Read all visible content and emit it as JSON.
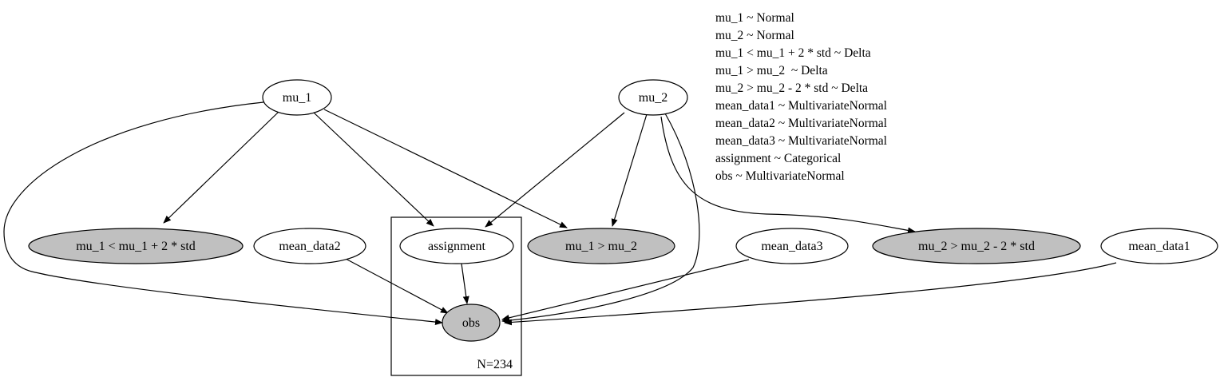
{
  "diagram": {
    "nodes": {
      "mu_1": {
        "label": "mu_1",
        "observed": false
      },
      "mu_2": {
        "label": "mu_2",
        "observed": false
      },
      "mu1_lt": {
        "label": "mu_1 < mu_1 + 2 * std",
        "observed": true
      },
      "mean_data2": {
        "label": "mean_data2",
        "observed": false
      },
      "assignment": {
        "label": "assignment",
        "observed": false
      },
      "mu1_gt_mu2": {
        "label": "mu_1 > mu_2",
        "observed": true
      },
      "mean_data3": {
        "label": "mean_data3",
        "observed": false
      },
      "mu2_gt": {
        "label": "mu_2 > mu_2 - 2 * std",
        "observed": true
      },
      "mean_data1": {
        "label": "mean_data1",
        "observed": false
      },
      "obs": {
        "label": "obs",
        "observed": true
      }
    },
    "plate": {
      "label": "N=234"
    },
    "edges": [
      {
        "from": "mu_1",
        "to": "mu1_lt"
      },
      {
        "from": "mu_1",
        "to": "assignment"
      },
      {
        "from": "mu_1",
        "to": "mu1_gt_mu2"
      },
      {
        "from": "mu_1",
        "to": "obs"
      },
      {
        "from": "mu_2",
        "to": "assignment"
      },
      {
        "from": "mu_2",
        "to": "mu1_gt_mu2"
      },
      {
        "from": "mu_2",
        "to": "mu2_gt"
      },
      {
        "from": "mu_2",
        "to": "obs"
      },
      {
        "from": "mean_data2",
        "to": "obs"
      },
      {
        "from": "assignment",
        "to": "obs"
      },
      {
        "from": "mean_data3",
        "to": "obs"
      },
      {
        "from": "mean_data1",
        "to": "obs"
      }
    ],
    "legend": [
      "mu_1 ~ Normal",
      "mu_2 ~ Normal",
      "mu_1 < mu_1 + 2 * std ~ Delta",
      "mu_1 > mu_2  ~ Delta",
      "mu_2 > mu_2 - 2 * std ~ Delta",
      "mean_data1 ~ MultivariateNormal",
      "mean_data2 ~ MultivariateNormal",
      "mean_data3 ~ MultivariateNormal",
      "assignment ~ Categorical",
      "obs ~ MultivariateNormal"
    ],
    "colors": {
      "observed_fill": "#c0c0c0",
      "latent_fill": "#ffffff",
      "stroke": "#000000"
    }
  }
}
